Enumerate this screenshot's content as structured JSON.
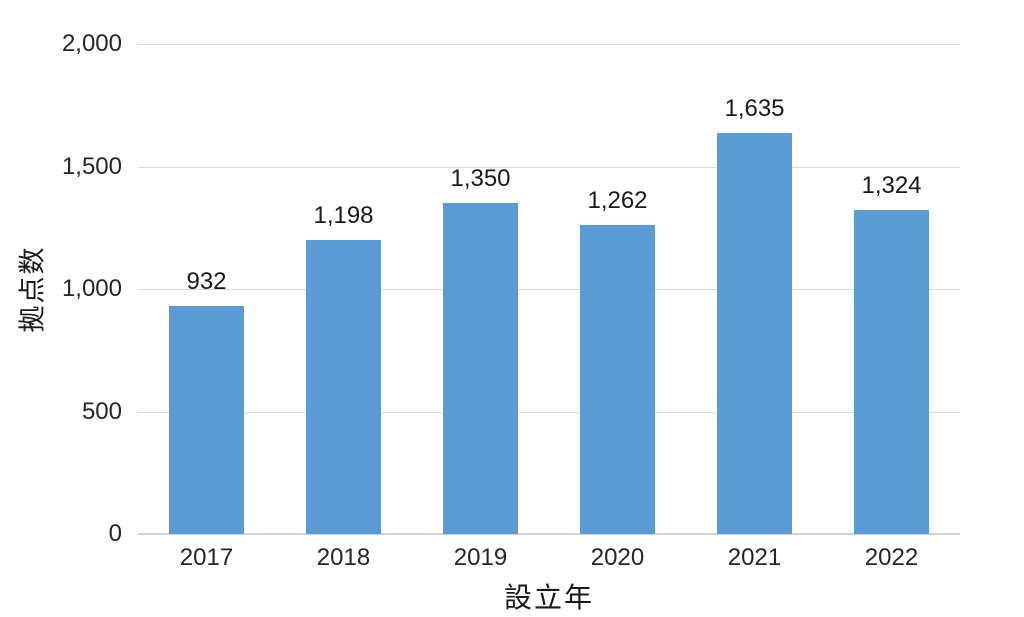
{
  "chart_data": {
    "type": "bar",
    "title": "",
    "xlabel": "設立年",
    "ylabel": "拠点数",
    "categories": [
      "2017",
      "2018",
      "2019",
      "2020",
      "2021",
      "2022"
    ],
    "values": [
      932,
      1198,
      1350,
      1262,
      1635,
      1324
    ],
    "data_labels": [
      "932",
      "1,198",
      "1,350",
      "1,262",
      "1,635",
      "1,324"
    ],
    "ylim": [
      0,
      2000
    ],
    "yticks": [
      0,
      500,
      1000,
      1500,
      2000
    ],
    "ytick_labels": [
      "0",
      "500",
      "1,000",
      "1,500",
      "2,000"
    ],
    "grid": true,
    "legend_position": "none",
    "colors": {
      "bar": "#5b9bd5",
      "gridline": "#d9d9d9",
      "axis_line": "#d2d2d2",
      "text": "#262626",
      "background": "#ffffff"
    }
  }
}
